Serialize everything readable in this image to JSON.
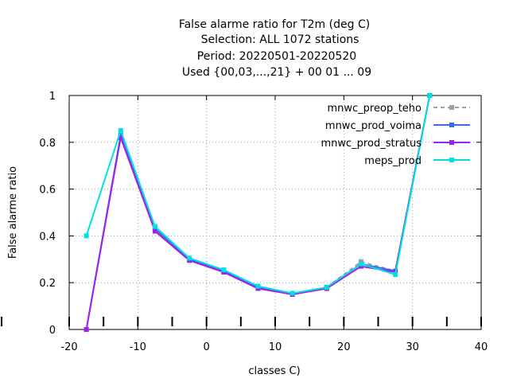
{
  "chart_data": {
    "type": "line",
    "title_lines": [
      "False alarme ratio  for T2m (deg C)",
      "Selection: ALL    1072 stations",
      "Period: 20220501-20220520",
      "Used {00,03,...,21} + 00 01 ... 09"
    ],
    "xlabel": "classes C)",
    "ylabel": "False alarme ratio",
    "xlim": [
      -20,
      40
    ],
    "ylim": [
      0,
      1
    ],
    "xticks": [
      -20,
      -10,
      0,
      10,
      20,
      30,
      40
    ],
    "yticks": [
      0,
      0.2,
      0.4,
      0.6,
      0.8,
      1
    ],
    "ytick_labels": [
      "0",
      "0.2",
      "0.4",
      "0.6",
      "0.8",
      "1"
    ],
    "grid": true,
    "legend_position": "top-right",
    "x": [
      -17.5,
      -12.5,
      -7.5,
      -2.5,
      2.5,
      7.5,
      12.5,
      17.5,
      22.5,
      27.5,
      32.5
    ],
    "series": [
      {
        "name": "mnwc_preop_teho",
        "color": "#a0a0a0",
        "dashed": true,
        "values": [
          0.0,
          0.83,
          0.43,
          0.3,
          0.25,
          0.18,
          0.15,
          0.18,
          0.29,
          0.25,
          1.0
        ]
      },
      {
        "name": "mnwc_prod_voima",
        "color": "#4169e1",
        "dashed": false,
        "values": [
          0.0,
          0.83,
          0.43,
          0.3,
          0.25,
          0.18,
          0.15,
          0.18,
          0.28,
          0.25,
          1.0
        ]
      },
      {
        "name": "mnwc_prod_stratus",
        "color": "#a020f0",
        "dashed": false,
        "values": [
          0.0,
          0.82,
          0.42,
          0.295,
          0.245,
          0.175,
          0.15,
          0.175,
          0.27,
          0.245,
          1.0
        ]
      },
      {
        "name": "meps_prod",
        "color": "#00e0e0",
        "dashed": false,
        "values": [
          0.4,
          0.85,
          0.44,
          0.305,
          0.255,
          0.185,
          0.155,
          0.18,
          0.28,
          0.235,
          1.0
        ]
      }
    ]
  }
}
